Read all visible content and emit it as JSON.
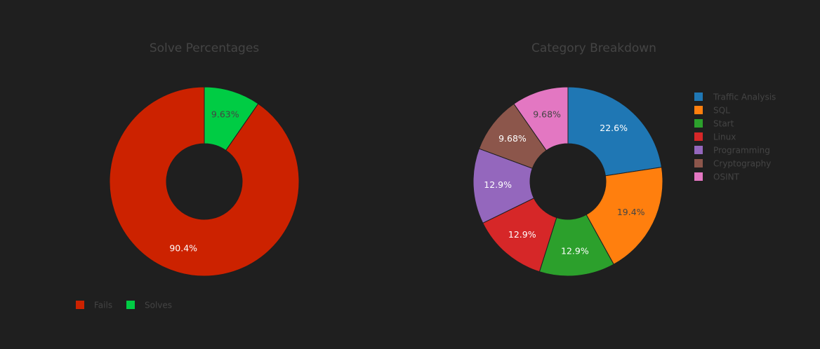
{
  "chart_data": [
    {
      "type": "pie",
      "subtype": "donut",
      "title": "Solve Percentages",
      "legend_position": "bottom-left",
      "legend_orientation": "horizontal",
      "series": [
        {
          "name": "Fails",
          "value": 90.4,
          "label": "90.4%",
          "color": "#cc2200",
          "label_color": "#ffffff"
        },
        {
          "name": "Solves",
          "value": 9.63,
          "label": "9.63%",
          "color": "#00cc44",
          "label_color": "#444444"
        }
      ]
    },
    {
      "type": "pie",
      "subtype": "donut",
      "title": "Category Breakdown",
      "legend_position": "right",
      "legend_orientation": "vertical",
      "series": [
        {
          "name": "Traffic Analysis",
          "value": 22.6,
          "label": "22.6%",
          "color": "#1f77b4",
          "label_color": "#ffffff"
        },
        {
          "name": "SQL",
          "value": 19.4,
          "label": "19.4%",
          "color": "#ff7f0e",
          "label_color": "#444444"
        },
        {
          "name": "Start",
          "value": 12.9,
          "label": "12.9%",
          "color": "#2ca02c",
          "label_color": "#ffffff"
        },
        {
          "name": "Linux",
          "value": 12.9,
          "label": "12.9%",
          "color": "#d62728",
          "label_color": "#ffffff"
        },
        {
          "name": "Programming",
          "value": 12.9,
          "label": "12.9%",
          "color": "#9467bd",
          "label_color": "#ffffff"
        },
        {
          "name": "Cryptography",
          "value": 9.68,
          "label": "9.68%",
          "color": "#8c564b",
          "label_color": "#ffffff"
        },
        {
          "name": "OSINT",
          "value": 9.68,
          "label": "9.68%",
          "color": "#e377c2",
          "label_color": "#444444"
        }
      ]
    }
  ]
}
